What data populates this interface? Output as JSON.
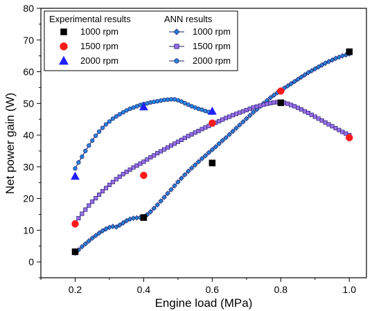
{
  "chart_data": {
    "type": "scatter",
    "xlabel": "Engine load (MPa)",
    "ylabel": "Net power gain (W)",
    "xlim": [
      0.1,
      1.05
    ],
    "ylim": [
      -5,
      80
    ],
    "xticks": [
      "0.2",
      "0.4",
      "0.6",
      "0.8",
      "1.0"
    ],
    "xtick_values": [
      0.2,
      0.4,
      0.6,
      0.8,
      1.0
    ],
    "yticks": [
      "0",
      "10",
      "20",
      "30",
      "40",
      "50",
      "60",
      "70",
      "80"
    ],
    "ytick_values": [
      0,
      10,
      20,
      30,
      40,
      50,
      60,
      70,
      80
    ],
    "grid": false,
    "legend_position": "top-left",
    "legend_headers": [
      "Experimental results",
      "ANN results"
    ],
    "experimental": [
      {
        "name": "1000 rpm",
        "marker": "square",
        "color": "#000000",
        "x": [
          0.2,
          0.4,
          0.6,
          0.8,
          1.0
        ],
        "y": [
          3.2,
          14.0,
          31.2,
          50.2,
          66.3
        ]
      },
      {
        "name": "1500 rpm",
        "marker": "circle",
        "color": "#ff1a1a",
        "x": [
          0.2,
          0.4,
          0.6,
          0.8,
          1.0
        ],
        "y": [
          12.0,
          27.3,
          43.8,
          53.9,
          39.2
        ]
      },
      {
        "name": "2000 rpm",
        "marker": "triangle",
        "color": "#1f1fff",
        "x": [
          0.2,
          0.4,
          0.6
        ],
        "y": [
          27.0,
          48.9,
          47.5
        ]
      }
    ],
    "ann": [
      {
        "name": "1000 rpm",
        "marker": "diamond",
        "color": "#2a7fd4",
        "x": [
          0.2,
          0.21,
          0.22,
          0.23,
          0.24,
          0.25,
          0.26,
          0.27,
          0.28,
          0.29,
          0.3,
          0.31,
          0.32,
          0.33,
          0.34,
          0.35,
          0.36,
          0.37,
          0.38,
          0.39,
          0.4,
          0.41,
          0.42,
          0.43,
          0.44,
          0.45,
          0.46,
          0.47,
          0.48,
          0.49,
          0.5,
          0.51,
          0.52,
          0.53,
          0.54,
          0.55,
          0.56,
          0.57,
          0.58,
          0.59,
          0.6,
          0.61,
          0.62,
          0.63,
          0.64,
          0.65,
          0.66,
          0.67,
          0.68,
          0.69,
          0.7,
          0.71,
          0.72,
          0.73,
          0.74,
          0.75,
          0.76,
          0.77,
          0.78,
          0.79,
          0.8,
          0.81,
          0.82,
          0.83,
          0.84,
          0.85,
          0.86,
          0.87,
          0.88,
          0.89,
          0.9,
          0.91,
          0.92,
          0.93,
          0.94,
          0.95,
          0.96,
          0.97,
          0.98,
          0.99,
          1.0
        ],
        "y": [
          2.8,
          3.8,
          4.8,
          5.7,
          6.6,
          7.5,
          8.3,
          9.1,
          9.8,
          10.4,
          10.9,
          11.2,
          11.0,
          11.6,
          12.3,
          13.0,
          13.5,
          13.8,
          13.9,
          14.0,
          14.2,
          14.9,
          15.8,
          16.9,
          18.0,
          19.2,
          20.4,
          21.6,
          22.8,
          24.0,
          25.2,
          26.4,
          27.5,
          28.6,
          29.6,
          30.6,
          31.6,
          32.6,
          33.5,
          34.5,
          35.4,
          36.3,
          37.3,
          38.3,
          39.2,
          40.2,
          41.2,
          42.2,
          43.2,
          44.2,
          45.2,
          46.2,
          47.2,
          48.1,
          49.1,
          50.0,
          50.9,
          51.8,
          52.6,
          53.4,
          54.1,
          54.8,
          55.5,
          56.2,
          56.9,
          57.6,
          58.3,
          59.0,
          59.7,
          60.3,
          60.9,
          61.5,
          62.1,
          62.7,
          63.2,
          63.7,
          64.2,
          64.6,
          65.0,
          65.3,
          65.6
        ]
      },
      {
        "name": "1500 rpm",
        "marker": "square",
        "color": "#9b6fe8",
        "x": [
          0.2,
          0.21,
          0.22,
          0.23,
          0.24,
          0.25,
          0.26,
          0.27,
          0.28,
          0.29,
          0.3,
          0.31,
          0.32,
          0.33,
          0.34,
          0.35,
          0.36,
          0.37,
          0.38,
          0.39,
          0.4,
          0.41,
          0.42,
          0.43,
          0.44,
          0.45,
          0.46,
          0.47,
          0.48,
          0.49,
          0.5,
          0.51,
          0.52,
          0.53,
          0.54,
          0.55,
          0.56,
          0.57,
          0.58,
          0.59,
          0.6,
          0.61,
          0.62,
          0.63,
          0.64,
          0.65,
          0.66,
          0.67,
          0.68,
          0.69,
          0.7,
          0.71,
          0.72,
          0.73,
          0.74,
          0.75,
          0.76,
          0.77,
          0.78,
          0.79,
          0.8,
          0.81,
          0.82,
          0.83,
          0.84,
          0.85,
          0.86,
          0.87,
          0.88,
          0.89,
          0.9,
          0.91,
          0.92,
          0.93,
          0.94,
          0.95,
          0.96,
          0.97,
          0.98,
          0.99,
          1.0
        ],
        "y": [
          12.4,
          13.8,
          15.2,
          16.5,
          17.8,
          19.0,
          20.1,
          21.2,
          22.3,
          23.3,
          24.3,
          25.2,
          26.1,
          26.9,
          27.7,
          28.4,
          29.1,
          29.8,
          30.4,
          31.0,
          31.6,
          32.3,
          33.0,
          33.6,
          34.3,
          34.9,
          35.5,
          36.1,
          36.7,
          37.3,
          37.9,
          38.5,
          39.1,
          39.7,
          40.2,
          40.8,
          41.3,
          41.9,
          42.4,
          42.9,
          43.4,
          43.9,
          44.4,
          44.9,
          45.4,
          45.8,
          46.3,
          46.7,
          47.1,
          47.5,
          47.9,
          48.3,
          48.7,
          49.0,
          49.3,
          49.6,
          49.9,
          50.1,
          50.3,
          50.4,
          50.4,
          50.2,
          49.9,
          49.5,
          49.1,
          48.6,
          48.1,
          47.5,
          47.0,
          46.4,
          45.8,
          45.2,
          44.6,
          44.0,
          43.4,
          42.8,
          42.2,
          41.6,
          41.0,
          40.5,
          40.0
        ]
      },
      {
        "name": "2000 rpm",
        "marker": "circle",
        "color": "#2a86e0",
        "x": [
          0.2,
          0.21,
          0.22,
          0.23,
          0.24,
          0.25,
          0.26,
          0.27,
          0.28,
          0.29,
          0.3,
          0.31,
          0.32,
          0.33,
          0.34,
          0.35,
          0.36,
          0.37,
          0.38,
          0.39,
          0.4,
          0.41,
          0.42,
          0.43,
          0.44,
          0.45,
          0.46,
          0.47,
          0.48,
          0.49,
          0.5,
          0.51,
          0.52,
          0.53,
          0.54,
          0.55,
          0.56,
          0.57,
          0.58,
          0.59,
          0.6
        ],
        "y": [
          29.5,
          31.4,
          33.2,
          35.0,
          36.7,
          38.3,
          39.8,
          41.1,
          42.3,
          43.4,
          44.3,
          45.2,
          45.9,
          46.6,
          47.2,
          47.8,
          48.3,
          48.7,
          49.1,
          49.5,
          49.8,
          50.0,
          50.3,
          50.5,
          50.7,
          50.9,
          51.1,
          51.2,
          51.3,
          51.3,
          51.0,
          50.6,
          50.1,
          49.6,
          49.1,
          48.7,
          48.3,
          48.0,
          47.6,
          47.3,
          47.1
        ]
      }
    ]
  }
}
